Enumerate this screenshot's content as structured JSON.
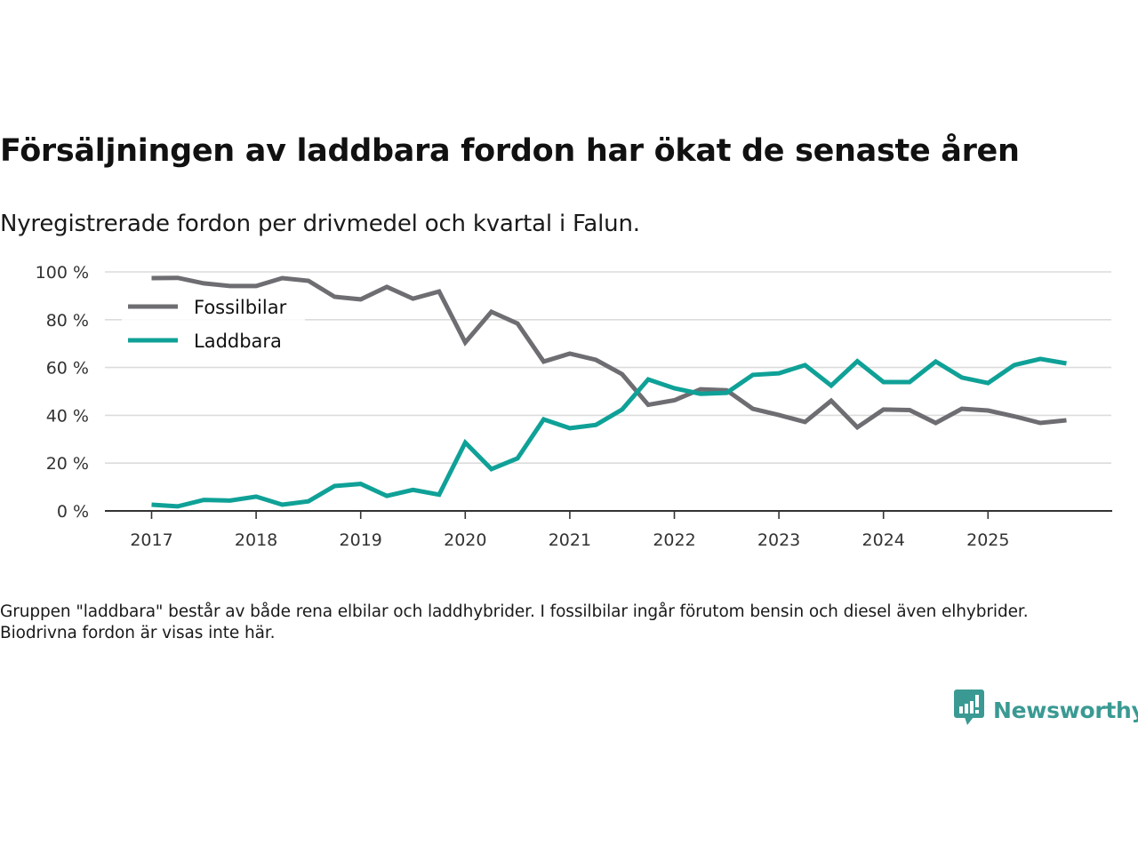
{
  "title": "Försäljningen av laddbara fordon har ökat de senaste åren",
  "subtitle": "Nyregistrerade fordon per drivmedel och kvartal i Falun.",
  "footnote": "Gruppen \"laddbara\" består av både rena elbilar och laddhybrider. I fossilbilar ingår förutom bensin och diesel även elhybrider. Biodrivna fordon är visas inte här.",
  "brand": {
    "name": "Newsworthy",
    "icon": "chart-bubble-icon",
    "color": "#3a9a93"
  },
  "chart_data": {
    "type": "line",
    "title": "Försäljningen av laddbara fordon har ökat de senaste åren",
    "subtitle": "Nyregistrerade fordon per drivmedel och kvartal i Falun.",
    "xlabel": "",
    "ylabel": "",
    "x": [
      "2017Q1",
      "2017Q2",
      "2017Q3",
      "2017Q4",
      "2018Q1",
      "2018Q2",
      "2018Q3",
      "2018Q4",
      "2019Q1",
      "2019Q2",
      "2019Q3",
      "2019Q4",
      "2020Q1",
      "2020Q2",
      "2020Q3",
      "2020Q4",
      "2021Q1",
      "2021Q2",
      "2021Q3",
      "2021Q4",
      "2022Q1",
      "2022Q2",
      "2022Q3",
      "2022Q4",
      "2023Q1",
      "2023Q2",
      "2023Q3",
      "2023Q4",
      "2024Q1",
      "2024Q2",
      "2024Q3",
      "2024Q4",
      "2025Q1",
      "2025Q2",
      "2025Q3",
      "2025Q4"
    ],
    "x_ticks": [
      "2017",
      "2018",
      "2019",
      "2020",
      "2021",
      "2022",
      "2023",
      "2024",
      "2025"
    ],
    "y_ticks": [
      "0 %",
      "20 %",
      "40 %",
      "60 %",
      "80 %",
      "100 %"
    ],
    "ylim": [
      0,
      100
    ],
    "grid": true,
    "legend_position": "top-left",
    "series": [
      {
        "name": "Fossilbilar",
        "color": "#6e6d72",
        "values": [
          97.4,
          97.5,
          95.2,
          94.1,
          94.1,
          97.4,
          96.3,
          89.6,
          88.5,
          93.7,
          88.8,
          91.8,
          70.5,
          83.3,
          78.4,
          62.5,
          65.8,
          63.2,
          57.2,
          44.4,
          46.3,
          50.9,
          50.5,
          42.7,
          40.1,
          37.2,
          46.1,
          35.0,
          42.4,
          42.2,
          36.8,
          42.7,
          42.0,
          39.6,
          36.8,
          37.9
        ]
      },
      {
        "name": "Laddbara",
        "color": "#0fa197",
        "values": [
          2.6,
          1.9,
          4.6,
          4.3,
          6.0,
          2.6,
          4.0,
          10.4,
          11.3,
          6.3,
          8.8,
          6.8,
          28.6,
          17.5,
          22.0,
          38.3,
          34.6,
          36.0,
          42.4,
          55.0,
          51.3,
          49.0,
          49.4,
          56.9,
          57.6,
          61.0,
          52.4,
          62.6,
          53.9,
          53.9,
          62.5,
          55.8,
          53.5,
          61.0,
          63.6,
          61.7
        ]
      }
    ]
  }
}
